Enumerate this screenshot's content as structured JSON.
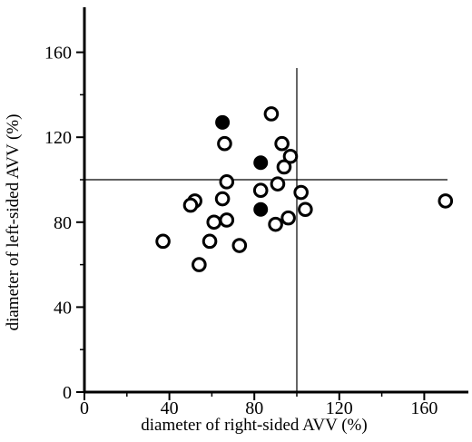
{
  "chart_data": {
    "type": "scatter",
    "title": "",
    "xlabel": "diameter of right-sided AVV (%)",
    "ylabel": "diameter of left-sided AVV (%)",
    "xlim": [
      0,
      180
    ],
    "ylim": [
      0,
      180
    ],
    "xticks": [
      0,
      40,
      80,
      120,
      160
    ],
    "yticks": [
      0,
      40,
      80,
      120,
      160
    ],
    "grid": false,
    "reference_lines": {
      "x": 100,
      "y": 100
    },
    "series": [
      {
        "marker": "open-circle",
        "points": [
          [
            88,
            131
          ],
          [
            66,
            117
          ],
          [
            93,
            117
          ],
          [
            97,
            111
          ],
          [
            94,
            106
          ],
          [
            67,
            99
          ],
          [
            91,
            98
          ],
          [
            83,
            95
          ],
          [
            102,
            94
          ],
          [
            65,
            91
          ],
          [
            52,
            90
          ],
          [
            50,
            88
          ],
          [
            104,
            86
          ],
          [
            67,
            81
          ],
          [
            61,
            80
          ],
          [
            96,
            82
          ],
          [
            90,
            79
          ],
          [
            59,
            71
          ],
          [
            73,
            69
          ],
          [
            37,
            71
          ],
          [
            54,
            60
          ],
          [
            170,
            90
          ]
        ]
      },
      {
        "marker": "filled-circle",
        "points": [
          [
            65,
            127
          ],
          [
            83,
            108
          ],
          [
            83,
            86
          ]
        ]
      }
    ]
  }
}
